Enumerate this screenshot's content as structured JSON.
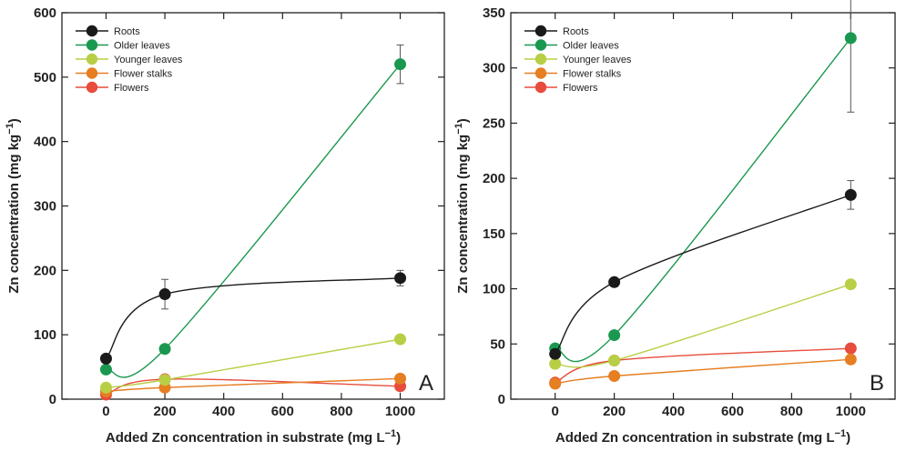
{
  "chart_data": [
    {
      "type": "line",
      "panel": "A",
      "xlabel": "Added Zn concentration in substrate (mg L",
      "xlabel_sup": "−1",
      "xlabel_close": ")",
      "ylabel": "Zn concentration (mg kg",
      "ylabel_sup": "−1",
      "ylabel_close": ")",
      "xlim": [
        -150,
        1150
      ],
      "ylim": [
        0,
        600
      ],
      "x_ticks": [
        0,
        200,
        400,
        600,
        800,
        1000
      ],
      "y_ticks": [
        0,
        100,
        200,
        300,
        400,
        500,
        600
      ],
      "legend_position": "top-left",
      "x": [
        0,
        200,
        1000
      ],
      "series": [
        {
          "name": "Roots",
          "color": "#1a1a1a",
          "values": [
            63,
            163,
            188
          ],
          "errors": [
            0,
            23,
            12
          ]
        },
        {
          "name": "Older leaves",
          "color": "#1a9850",
          "values": [
            46,
            78,
            520
          ],
          "errors": [
            0,
            0,
            30
          ]
        },
        {
          "name": "Younger leaves",
          "color": "#b8cf45",
          "values": [
            18,
            30,
            93
          ],
          "errors": [
            0,
            0,
            0
          ]
        },
        {
          "name": "Flower stalks",
          "color": "#e67e22",
          "values": [
            12,
            18,
            32
          ],
          "errors": [
            0,
            0,
            0
          ]
        },
        {
          "name": "Flowers",
          "color": "#e74c3c",
          "values": [
            7,
            31,
            20
          ],
          "errors": [
            0,
            0,
            0
          ]
        }
      ]
    },
    {
      "type": "line",
      "panel": "B",
      "xlabel": "Added Zn concentration in substrate (mg L",
      "xlabel_sup": "−1",
      "xlabel_close": ")",
      "ylabel": "Zn concentration (mg kg",
      "ylabel_sup": "−1",
      "ylabel_close": ")",
      "xlim": [
        -150,
        1150
      ],
      "ylim": [
        0,
        350
      ],
      "x_ticks": [
        0,
        200,
        400,
        600,
        800,
        1000
      ],
      "y_ticks": [
        0,
        50,
        100,
        150,
        200,
        250,
        300,
        350
      ],
      "legend_position": "top-left",
      "x": [
        0,
        200,
        1000
      ],
      "series": [
        {
          "name": "Roots",
          "color": "#1a1a1a",
          "values": [
            41,
            106,
            185
          ],
          "errors": [
            0,
            0,
            13
          ]
        },
        {
          "name": "Older leaves",
          "color": "#1a9850",
          "values": [
            46,
            58,
            327
          ],
          "errors": [
            0,
            0,
            67
          ]
        },
        {
          "name": "Younger leaves",
          "color": "#b8cf45",
          "values": [
            32,
            35,
            104
          ],
          "errors": [
            0,
            0,
            0
          ]
        },
        {
          "name": "Flower stalks",
          "color": "#e67e22",
          "values": [
            14,
            21,
            36
          ],
          "errors": [
            0,
            0,
            0
          ]
        },
        {
          "name": "Flowers",
          "color": "#e74c3c",
          "values": [
            15,
            35,
            46
          ],
          "errors": [
            0,
            0,
            0
          ]
        }
      ]
    }
  ]
}
